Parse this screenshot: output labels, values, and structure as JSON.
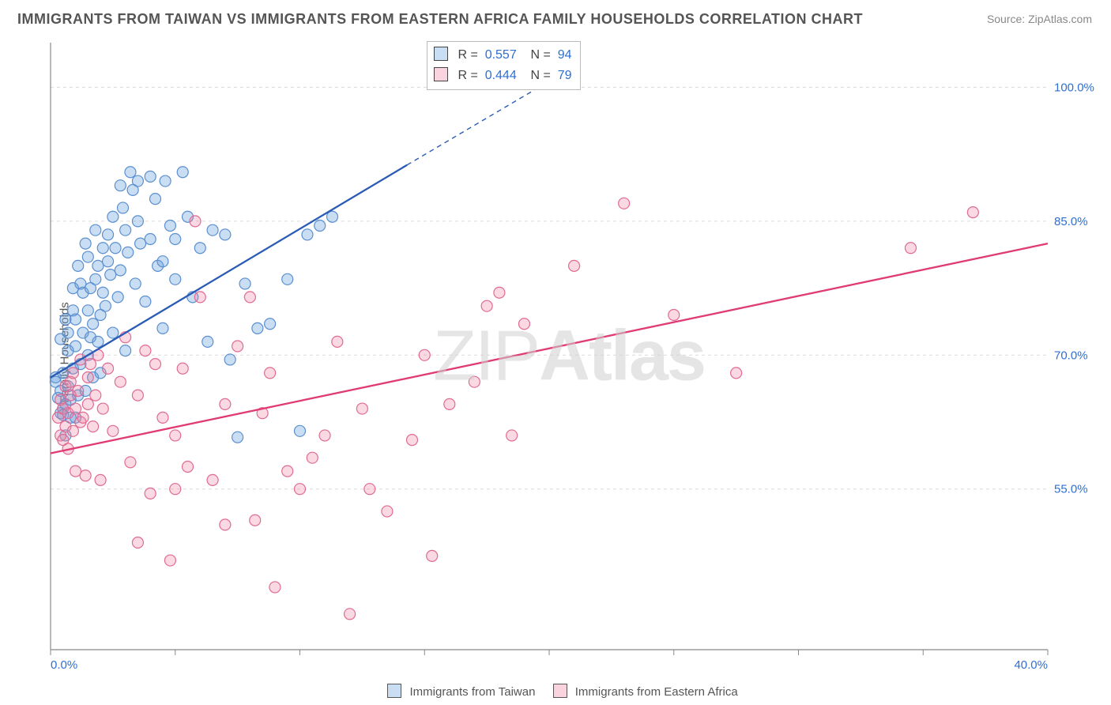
{
  "title": "IMMIGRANTS FROM TAIWAN VS IMMIGRANTS FROM EASTERN AFRICA FAMILY HOUSEHOLDS CORRELATION CHART",
  "source": "Source: ZipAtlas.com",
  "watermark_light": "ZIP",
  "watermark_bold": "Atlas",
  "chart": {
    "type": "scatter",
    "xlim": [
      0,
      40
    ],
    "ylim": [
      37,
      105
    ],
    "x_ticks": [
      0,
      5,
      10,
      15,
      20,
      25,
      30,
      35,
      40
    ],
    "y_gridlines": [
      55,
      70,
      85,
      100
    ],
    "x_tick_labels_shown": {
      "0": "0.0%",
      "40": "40.0%"
    },
    "y_tick_labels_shown": {
      "55": "55.0%",
      "70": "70.0%",
      "85": "85.0%",
      "100": "100.0%"
    },
    "ylabel": "Family Households",
    "background": "#ffffff",
    "grid_color": "#dcdcdc",
    "axis_line_color": "#888888",
    "label_color_blue": "#2f6fd0",
    "series": [
      {
        "name": "Immigrants from Taiwan",
        "color_fill": "rgba(104,160,220,0.35)",
        "color_stroke": "#5b8fd0",
        "marker_radius": 7,
        "R": "0.557",
        "N": "94",
        "trend": {
          "x1": 0,
          "y1": 67.5,
          "x2": 14.3,
          "y2": 91.3,
          "stroke": "#2a5bb5",
          "width": 2.3,
          "dash_ext": {
            "x1": 14.3,
            "y1": 91.3,
            "x2": 20.5,
            "y2": 101.5
          }
        },
        "points": [
          [
            0.2,
            67.5
          ],
          [
            0.2,
            67.0
          ],
          [
            0.3,
            65.2
          ],
          [
            0.4,
            66.0
          ],
          [
            0.4,
            71.8
          ],
          [
            0.4,
            63.5
          ],
          [
            0.5,
            64.0
          ],
          [
            0.5,
            68.0
          ],
          [
            0.5,
            63.3
          ],
          [
            0.6,
            64.5
          ],
          [
            0.6,
            61.0
          ],
          [
            0.6,
            74.0
          ],
          [
            0.7,
            70.5
          ],
          [
            0.7,
            66.5
          ],
          [
            0.7,
            72.5
          ],
          [
            0.8,
            65.0
          ],
          [
            0.8,
            63.0
          ],
          [
            0.9,
            68.5
          ],
          [
            0.9,
            75.0
          ],
          [
            0.9,
            77.5
          ],
          [
            1.0,
            63.0
          ],
          [
            1.0,
            71.0
          ],
          [
            1.0,
            74.0
          ],
          [
            1.1,
            65.5
          ],
          [
            1.1,
            80.0
          ],
          [
            1.2,
            69.0
          ],
          [
            1.2,
            78.0
          ],
          [
            1.3,
            72.5
          ],
          [
            1.3,
            77.0
          ],
          [
            1.4,
            82.5
          ],
          [
            1.4,
            66.0
          ],
          [
            1.5,
            70.0
          ],
          [
            1.5,
            75.0
          ],
          [
            1.5,
            81.0
          ],
          [
            1.6,
            77.5
          ],
          [
            1.6,
            72.0
          ],
          [
            1.7,
            73.5
          ],
          [
            1.7,
            67.5
          ],
          [
            1.8,
            78.5
          ],
          [
            1.8,
            84.0
          ],
          [
            1.9,
            71.5
          ],
          [
            1.9,
            80.0
          ],
          [
            2.0,
            74.5
          ],
          [
            2.0,
            68.0
          ],
          [
            2.1,
            82.0
          ],
          [
            2.1,
            77.0
          ],
          [
            2.2,
            75.5
          ],
          [
            2.3,
            83.5
          ],
          [
            2.3,
            80.5
          ],
          [
            2.4,
            79.0
          ],
          [
            2.5,
            85.5
          ],
          [
            2.5,
            72.5
          ],
          [
            2.6,
            82.0
          ],
          [
            2.7,
            76.5
          ],
          [
            2.8,
            89.0
          ],
          [
            2.8,
            79.5
          ],
          [
            2.9,
            86.5
          ],
          [
            3.0,
            84.0
          ],
          [
            3.0,
            70.5
          ],
          [
            3.1,
            81.5
          ],
          [
            3.2,
            90.5
          ],
          [
            3.3,
            88.5
          ],
          [
            3.4,
            78.0
          ],
          [
            3.5,
            89.5
          ],
          [
            3.5,
            85.0
          ],
          [
            3.6,
            82.5
          ],
          [
            3.8,
            76.0
          ],
          [
            4.0,
            90.0
          ],
          [
            4.0,
            83.0
          ],
          [
            4.2,
            87.5
          ],
          [
            4.3,
            80.0
          ],
          [
            4.5,
            80.5
          ],
          [
            4.5,
            73.0
          ],
          [
            4.6,
            89.5
          ],
          [
            4.8,
            84.5
          ],
          [
            5.0,
            83.0
          ],
          [
            5.0,
            78.5
          ],
          [
            5.3,
            90.5
          ],
          [
            5.5,
            85.5
          ],
          [
            5.7,
            76.5
          ],
          [
            6.0,
            82.0
          ],
          [
            6.3,
            71.5
          ],
          [
            6.5,
            84.0
          ],
          [
            7.0,
            83.5
          ],
          [
            7.2,
            69.5
          ],
          [
            7.5,
            60.8
          ],
          [
            7.8,
            78.0
          ],
          [
            8.3,
            73.0
          ],
          [
            8.8,
            73.5
          ],
          [
            9.5,
            78.5
          ],
          [
            10.0,
            61.5
          ],
          [
            10.3,
            83.5
          ],
          [
            10.8,
            84.5
          ],
          [
            11.3,
            85.5
          ]
        ]
      },
      {
        "name": "Immigrants from Eastern Africa",
        "color_fill": "rgba(238,128,160,0.30)",
        "color_stroke": "#e06b93",
        "marker_radius": 7,
        "R": "0.444",
        "N": "79",
        "trend": {
          "x1": 0,
          "y1": 59.0,
          "x2": 40,
          "y2": 82.5,
          "stroke": "#e03b74",
          "width": 2.3
        },
        "points": [
          [
            0.3,
            63.0
          ],
          [
            0.4,
            61.0
          ],
          [
            0.4,
            65.0
          ],
          [
            0.5,
            60.5
          ],
          [
            0.5,
            64.0
          ],
          [
            0.6,
            62.0
          ],
          [
            0.6,
            66.5
          ],
          [
            0.7,
            63.5
          ],
          [
            0.7,
            59.5
          ],
          [
            0.8,
            67.0
          ],
          [
            0.8,
            65.5
          ],
          [
            0.9,
            61.5
          ],
          [
            0.9,
            68.0
          ],
          [
            1.0,
            64.0
          ],
          [
            1.0,
            57.0
          ],
          [
            1.1,
            66.0
          ],
          [
            1.2,
            62.5
          ],
          [
            1.2,
            69.5
          ],
          [
            1.3,
            63.0
          ],
          [
            1.4,
            56.5
          ],
          [
            1.5,
            67.5
          ],
          [
            1.5,
            64.5
          ],
          [
            1.6,
            69.0
          ],
          [
            1.7,
            62.0
          ],
          [
            1.8,
            65.5
          ],
          [
            1.9,
            70.0
          ],
          [
            2.0,
            56.0
          ],
          [
            2.1,
            64.0
          ],
          [
            2.3,
            68.5
          ],
          [
            2.5,
            61.5
          ],
          [
            2.8,
            67.0
          ],
          [
            3.0,
            72.0
          ],
          [
            3.2,
            58.0
          ],
          [
            3.5,
            49.0
          ],
          [
            3.5,
            65.5
          ],
          [
            3.8,
            70.5
          ],
          [
            4.0,
            54.5
          ],
          [
            4.2,
            69.0
          ],
          [
            4.5,
            63.0
          ],
          [
            4.8,
            47.0
          ],
          [
            5.0,
            61.0
          ],
          [
            5.0,
            55.0
          ],
          [
            5.3,
            68.5
          ],
          [
            5.5,
            57.5
          ],
          [
            5.8,
            85.0
          ],
          [
            6.0,
            76.5
          ],
          [
            6.5,
            56.0
          ],
          [
            7.0,
            64.5
          ],
          [
            7.0,
            51.0
          ],
          [
            7.5,
            71.0
          ],
          [
            8.0,
            76.5
          ],
          [
            8.2,
            51.5
          ],
          [
            8.5,
            63.5
          ],
          [
            8.8,
            68.0
          ],
          [
            9.0,
            44.0
          ],
          [
            9.5,
            57.0
          ],
          [
            10.0,
            55.0
          ],
          [
            10.5,
            58.5
          ],
          [
            11.0,
            61.0
          ],
          [
            11.5,
            71.5
          ],
          [
            12.0,
            41.0
          ],
          [
            12.5,
            64.0
          ],
          [
            12.8,
            55.0
          ],
          [
            13.5,
            52.5
          ],
          [
            14.5,
            60.5
          ],
          [
            15.0,
            70.0
          ],
          [
            15.3,
            47.5
          ],
          [
            16.0,
            64.5
          ],
          [
            17.0,
            67.0
          ],
          [
            17.5,
            75.5
          ],
          [
            18.0,
            77.0
          ],
          [
            18.5,
            61.0
          ],
          [
            19.0,
            73.5
          ],
          [
            21.0,
            80.0
          ],
          [
            23.0,
            87.0
          ],
          [
            25.0,
            74.5
          ],
          [
            27.5,
            68.0
          ],
          [
            34.5,
            82.0
          ],
          [
            37.0,
            86.0
          ]
        ]
      }
    ],
    "bottom_legend": [
      {
        "swatch": "blue",
        "label": "Immigrants from Taiwan"
      },
      {
        "swatch": "pink",
        "label": "Immigrants from Eastern Africa"
      }
    ]
  }
}
